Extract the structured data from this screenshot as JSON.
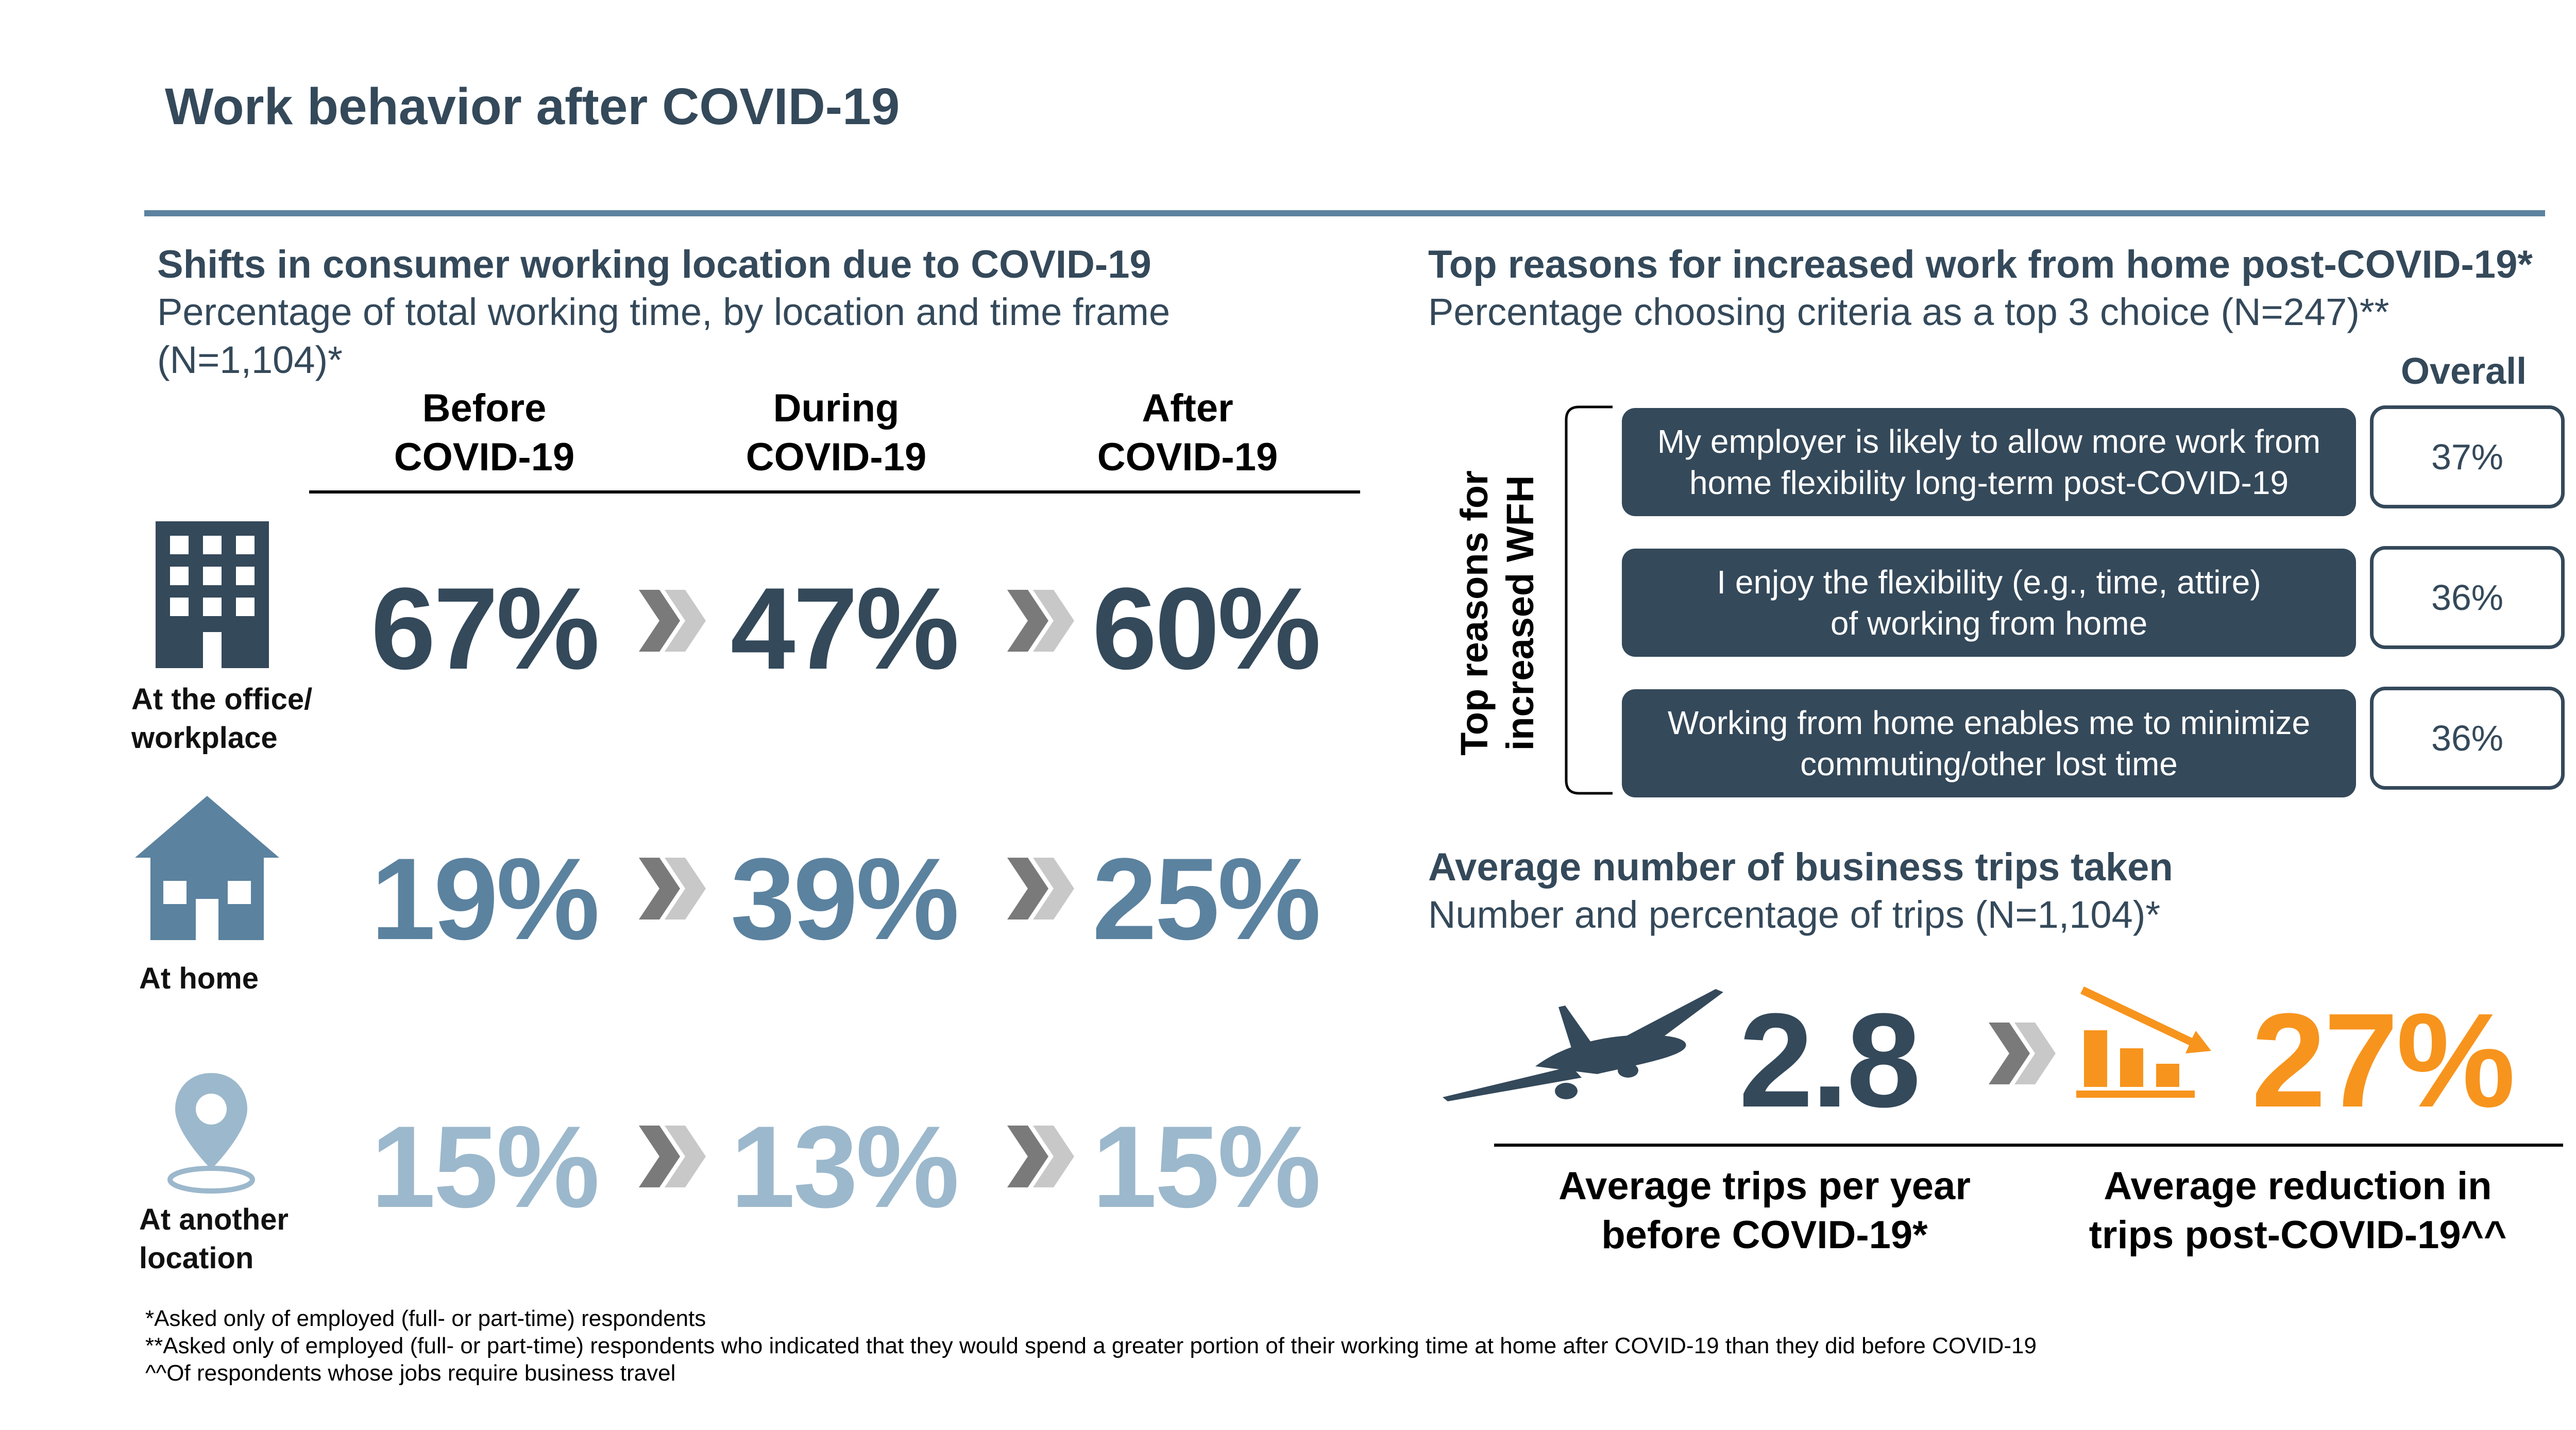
{
  "title": "Work behavior after COVID-19",
  "left_section": {
    "title": "Shifts in consumer working location due to COVID-19",
    "subtitle_line1": "Percentage of total working time, by location and time frame",
    "subtitle_line2": "(N=1,104)*",
    "columns": [
      {
        "line1": "Before",
        "line2": "COVID-19"
      },
      {
        "line1": "During",
        "line2": "COVID-19"
      },
      {
        "line1": "After",
        "line2": "COVID-19"
      }
    ],
    "rows": [
      {
        "label_line1": "At the office/",
        "label_line2": "workplace",
        "icon": "office-building-icon",
        "values": [
          "67%",
          "47%",
          "60%"
        ]
      },
      {
        "label_line1": "At home",
        "label_line2": "",
        "icon": "house-icon",
        "values": [
          "19%",
          "39%",
          "25%"
        ]
      },
      {
        "label_line1": "At another",
        "label_line2": "location",
        "icon": "location-pin-icon",
        "values": [
          "15%",
          "13%",
          "15%"
        ]
      }
    ],
    "colors": {
      "office": "#34495a",
      "home": "#5b829f",
      "other": "#9cb8cc"
    }
  },
  "right_section": {
    "title": "Top reasons for increased work from home post-COVID-19*",
    "subtitle": "Percentage choosing criteria as a top 3 choice (N=247)**",
    "overall_label": "Overall",
    "vertical_label_line1": "Top reasons for",
    "vertical_label_line2": "increased WFH",
    "reasons": [
      {
        "line1": "My employer is likely to allow more work from",
        "line2": "home flexibility long-term post-COVID-19",
        "value": "37%"
      },
      {
        "line1": "I enjoy the flexibility (e.g., time, attire)",
        "line2": "of working from home",
        "value": "36%"
      },
      {
        "line1": "Working from home enables me to minimize",
        "line2": "commuting/other lost time",
        "value": "36%"
      }
    ]
  },
  "trips_section": {
    "title": "Average number of business trips taken",
    "subtitle": "Number and percentage of trips (N=1,104)*",
    "trips_value": "2.8",
    "trips_label_line1": "Average trips per year",
    "trips_label_line2": "before COVID-19*",
    "reduction_value": "27%",
    "reduction_label_line1": "Average reduction in",
    "reduction_label_line2": "trips post-COVID-19^^",
    "accent_color": "#f7941d",
    "icons": [
      "airplane-icon",
      "declining-bar-chart-icon"
    ]
  },
  "footnotes": [
    "*Asked only of employed (full- or part-time) respondents",
    "**Asked only of employed (full- or part-time) respondents who indicated that they would spend a greater portion of their working time at home after COVID-19 than they did before COVID-19",
    "^^Of respondents whose jobs require business travel"
  ]
}
